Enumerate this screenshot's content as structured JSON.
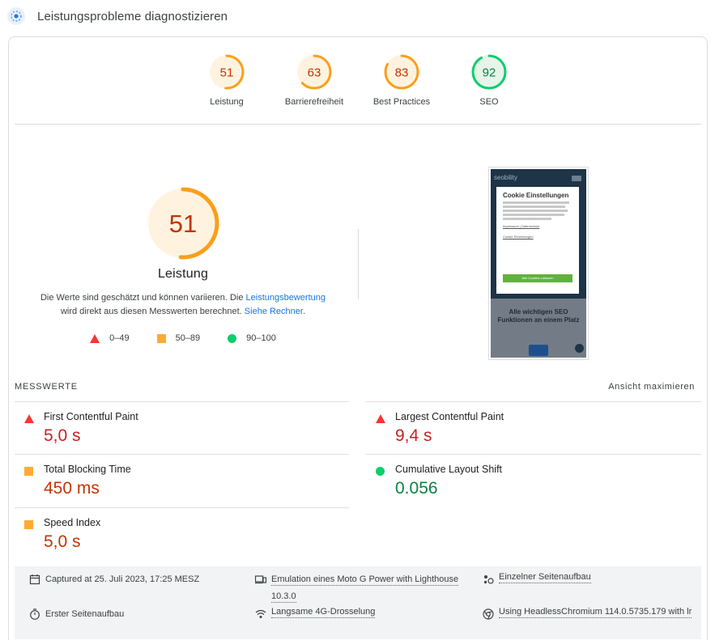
{
  "header": {
    "title": "Leistungsprobleme diagnostizieren",
    "icon": "lighthouse-icon"
  },
  "gauges": [
    {
      "score": "51",
      "label": "Leistung",
      "color": "#fa9f1b"
    },
    {
      "score": "63",
      "label": "Barrierefreiheit",
      "color": "#fa9f1b"
    },
    {
      "score": "83",
      "label": "Best Practices",
      "color": "#fa9f1b"
    },
    {
      "score": "92",
      "label": "SEO",
      "color": "#0cce6b"
    }
  ],
  "performance": {
    "score": "51",
    "title": "Leistung",
    "desc_part1": "Die Werte sind geschätzt und können variieren. Die ",
    "desc_link1": "Leistungsbewertung",
    "desc_part2": "wird direkt aus diesen Messwerten berechnet. ",
    "desc_link2": "Siehe Rechner",
    "desc_part3": "."
  },
  "legend": [
    {
      "range": "0–49",
      "shape": "triangle",
      "color": "#ff3333"
    },
    {
      "range": "50–89",
      "shape": "square",
      "color": "#ffaa33"
    },
    {
      "range": "90–100",
      "shape": "circle",
      "color": "#0cce6b"
    }
  ],
  "screenshot": {
    "logo": "seobility",
    "modal_title": "Cookie Einstellungen",
    "modal_links": "Impressum | Datenschutz",
    "modal_settings": "Cookie Einstellungen",
    "modal_button": "Alle Cookies zulassen",
    "hero": "Alle wichtigen SEO Funktionen an einem Platz"
  },
  "metrics": {
    "section_label": "MESSWERTE",
    "expand_label": "Ansicht maximieren",
    "items": [
      {
        "name": "First Contentful Paint",
        "value": "5,0 s",
        "status": "red"
      },
      {
        "name": "Largest Contentful Paint",
        "value": "9,4 s",
        "status": "red"
      },
      {
        "name": "Total Blocking Time",
        "value": "450 ms",
        "status": "orange"
      },
      {
        "name": "Cumulative Layout Shift",
        "value": "0.056",
        "status": "green"
      },
      {
        "name": "Speed Index",
        "value": "5,0 s",
        "status": "orange"
      }
    ]
  },
  "footer": {
    "captured": "Captured at 25. Juli 2023, 17:25 MESZ",
    "emulation": "Emulation eines Moto G Power with Lighthouse",
    "emulation_version": "10.3.0",
    "single_load": "Einzelner Seitenaufbau",
    "first_load": "Erster Seitenaufbau",
    "throttling": "Langsame 4G-Drosselung",
    "browser": "Using HeadlessChromium 114.0.5735.179 with lr"
  }
}
